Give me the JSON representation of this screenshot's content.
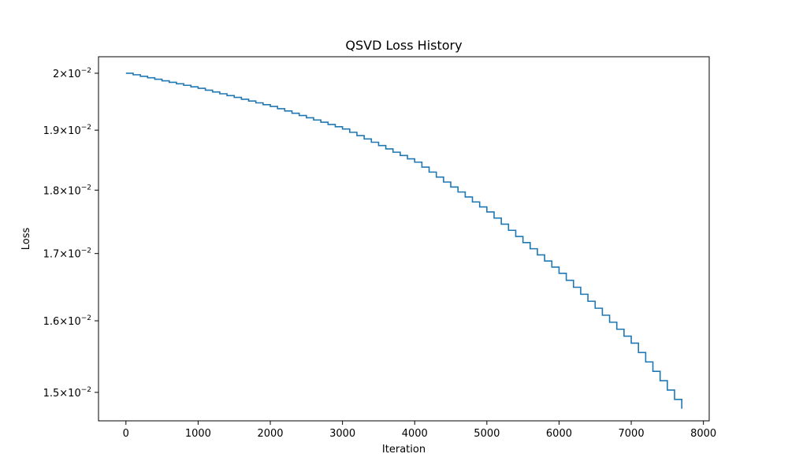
{
  "chart_data": {
    "type": "line",
    "title": "QSVD Loss History",
    "xlabel": "Iteration",
    "ylabel": "Loss",
    "yscale": "log",
    "grid": false,
    "line_style": "steps",
    "series_color": "#1f77b4",
    "xlim": [
      -380,
      8080
    ],
    "ylim": [
      0.01462,
      0.0203
    ],
    "x_ticks": [
      0,
      1000,
      2000,
      3000,
      4000,
      5000,
      6000,
      7000,
      8000
    ],
    "x_tick_labels": [
      "0",
      "1000",
      "2000",
      "3000",
      "4000",
      "5000",
      "6000",
      "7000",
      "8000"
    ],
    "y_ticks": [
      {
        "value": 0.02,
        "mantissa": "2",
        "base": "10",
        "exponent": "−2"
      },
      {
        "value": 0.019,
        "mantissa": "1.9",
        "base": "10",
        "exponent": "−2"
      },
      {
        "value": 0.018,
        "mantissa": "1.8",
        "base": "10",
        "exponent": "−2"
      },
      {
        "value": 0.017,
        "mantissa": "1.7",
        "base": "10",
        "exponent": "−2"
      },
      {
        "value": 0.016,
        "mantissa": "1.6",
        "base": "10",
        "exponent": "−2"
      },
      {
        "value": 0.015,
        "mantissa": "1.5",
        "base": "10",
        "exponent": "−2"
      }
    ],
    "series": [
      {
        "x": [
          0,
          1000,
          2000,
          3000,
          4000,
          5000,
          6000,
          7000,
          7700
        ],
        "y": [
          0.02,
          0.01973,
          0.01941,
          0.01902,
          0.01846,
          0.01765,
          0.0167,
          0.01568,
          0.01478
        ]
      }
    ],
    "step_width": 100
  }
}
